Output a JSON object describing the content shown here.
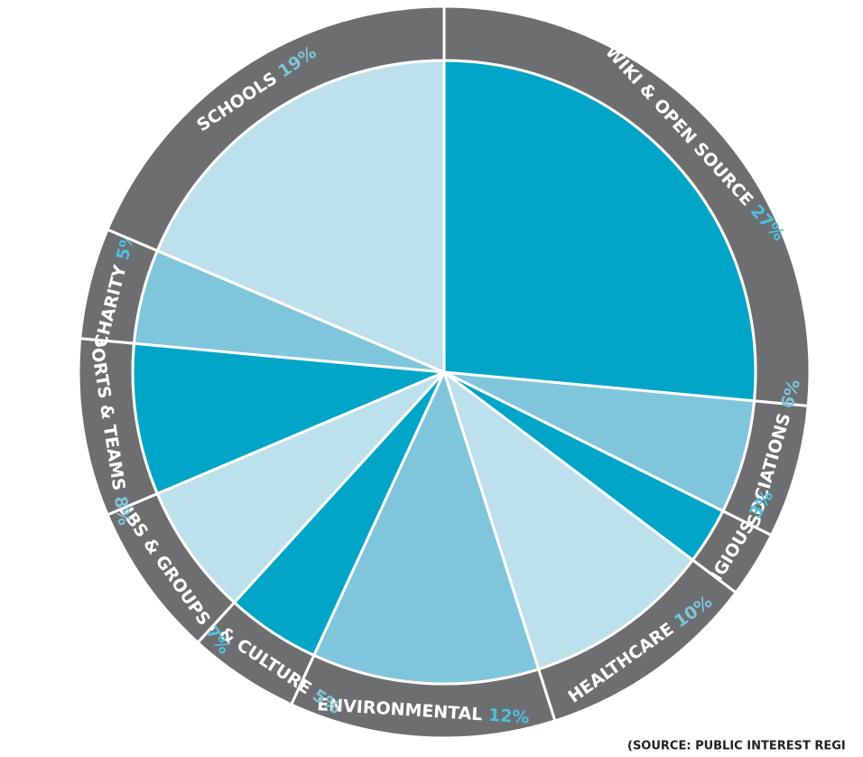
{
  "chart_data": {
    "type": "pie",
    "categories": [
      "WIKI & OPEN SOURCE",
      "ASSOCIATIONS",
      "RELIGIOUS",
      "HEALTHCARE",
      "ENVIRONMENTAL",
      "ARTS & CULTURE",
      "CLUBS & GROUPS",
      "SPORTS & TEAMS",
      "CHARITY",
      "SCHOOLS"
    ],
    "values": [
      27,
      6,
      3,
      10,
      12,
      5,
      7,
      8,
      5,
      19
    ],
    "value_labels": [
      "27%",
      "6%",
      "3%",
      "10%",
      "12%",
      "5%",
      "7%",
      "8%",
      "5%",
      "19%"
    ],
    "colors": [
      "#00a5c8",
      "#7fc5db",
      "#00a5c8",
      "#bce0ec",
      "#7fc5db",
      "#00a5c8",
      "#bce0ec",
      "#00a5c8",
      "#7fc5db",
      "#bce0ec"
    ],
    "ring_color": "#6d6e70",
    "source": "(SOURCE: PUBLIC INTEREST REGI"
  }
}
